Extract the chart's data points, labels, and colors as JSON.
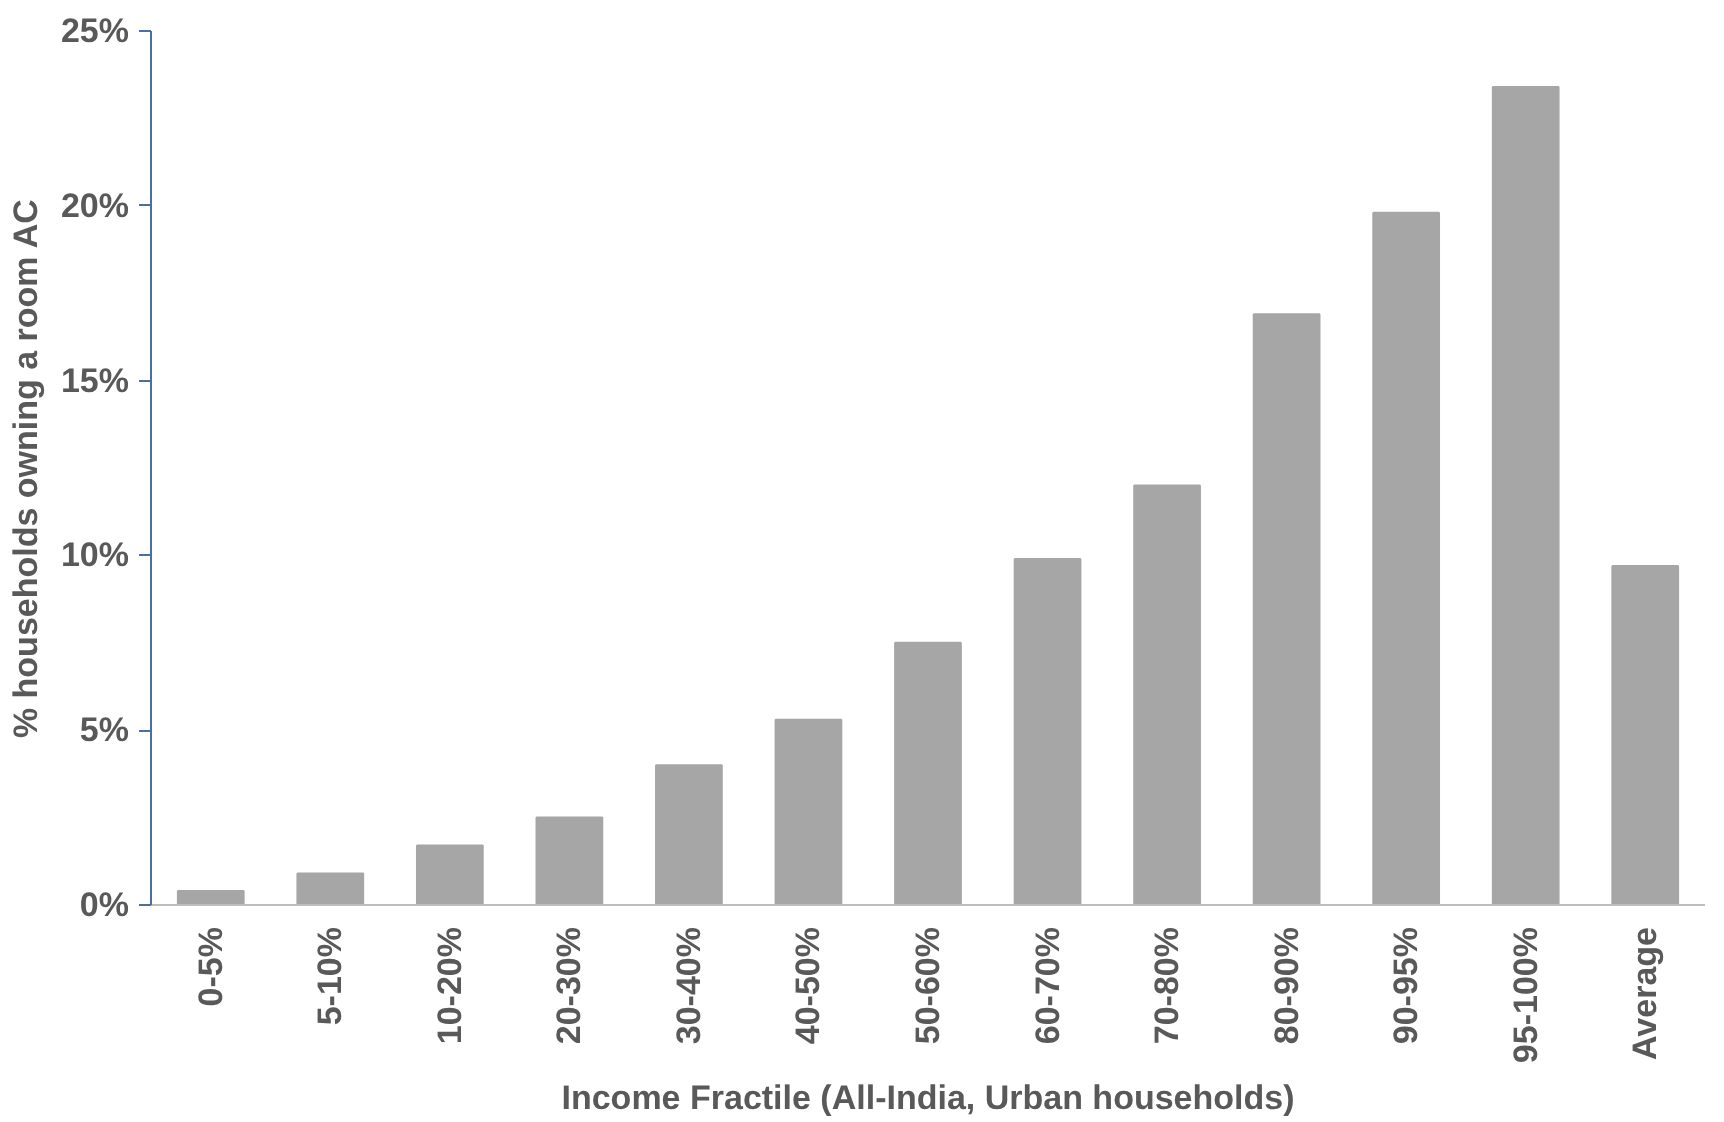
{
  "chart_data": {
    "type": "bar",
    "xlabel": "Income Fractile (All-India, Urban households)",
    "ylabel": "% households owning a room AC",
    "categories": [
      "0-5%",
      "5-10%",
      "10-20%",
      "20-30%",
      "30-40%",
      "40-50%",
      "50-60%",
      "60-70%",
      "70-80%",
      "80-90%",
      "90-95%",
      "95-100%",
      "Average"
    ],
    "values": [
      0.4,
      0.9,
      1.7,
      2.5,
      4.0,
      5.3,
      7.5,
      9.9,
      12.0,
      16.9,
      19.8,
      23.4,
      9.7
    ],
    "color": "#a6a6a6",
    "ylim": [
      0,
      25
    ],
    "yticks": [
      {
        "value": 0,
        "label": "0%"
      },
      {
        "value": 5,
        "label": "5%"
      },
      {
        "value": 10,
        "label": "10%"
      },
      {
        "value": 15,
        "label": "15%"
      },
      {
        "value": 20,
        "label": "20%"
      },
      {
        "value": 25,
        "label": "25%"
      }
    ],
    "grid": false
  }
}
